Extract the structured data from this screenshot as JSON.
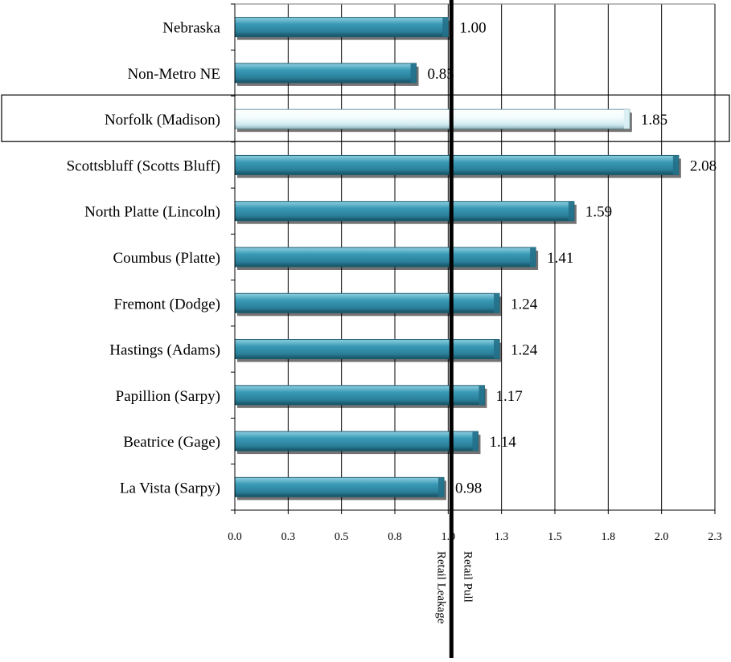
{
  "chart_data": {
    "type": "bar",
    "orientation": "horizontal",
    "categories": [
      "Nebraska",
      "Non-Metro NE",
      "Norfolk (Madison)",
      "Scottsbluff (Scotts Bluff)",
      "North Platte (Lincoln)",
      "Coumbus (Platte)",
      "Fremont (Dodge)",
      "Hastings (Adams)",
      "Papillion (Sarpy)",
      "Beatrice (Gage)",
      "La Vista (Sarpy)"
    ],
    "values": [
      1.0,
      0.85,
      1.85,
      2.08,
      1.59,
      1.41,
      1.24,
      1.24,
      1.17,
      1.14,
      0.98
    ],
    "value_labels": [
      "1.00",
      "0.85",
      "1.85",
      "2.08",
      "1.59",
      "1.41",
      "1.24",
      "1.24",
      "1.17",
      "1.14",
      "0.98"
    ],
    "highlighted_category": "Norfolk (Madison)",
    "xlim": [
      0,
      2.25
    ],
    "xticks": [
      0,
      0.25,
      0.5,
      0.75,
      1.0,
      1.25,
      1.5,
      1.75,
      2.0,
      2.25
    ],
    "xtick_labels": [
      "0.0",
      "0.3",
      "0.5",
      "0.8",
      "1.0",
      "1.3",
      "1.5",
      "1.8",
      "2.0",
      "2.3"
    ],
    "reference_line": 1.0,
    "annotations": [
      "Retail Leakage",
      "Retail Pull"
    ],
    "grid": "vertical",
    "colors": {
      "bar": "#2f8ca6",
      "highlight_bar": "#e8f6f8",
      "reference_line": "#000000",
      "grid": "#000000"
    }
  }
}
